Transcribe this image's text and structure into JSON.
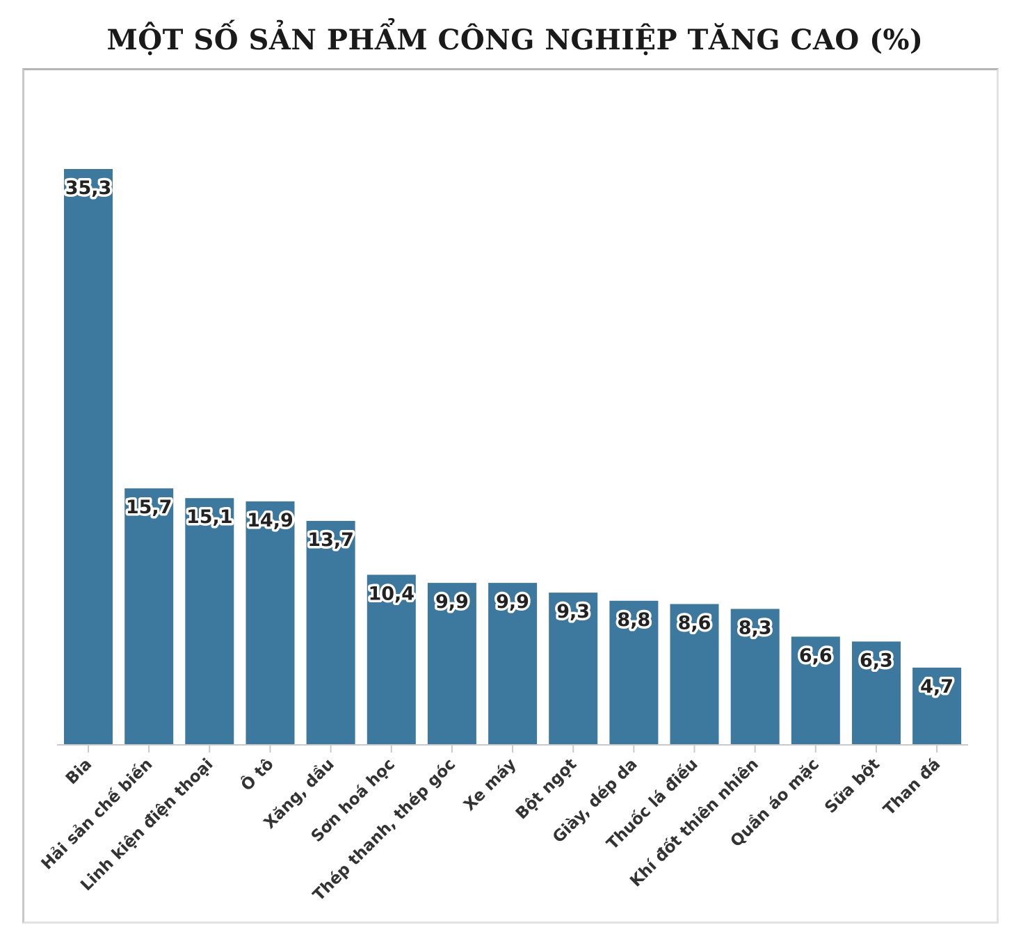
{
  "chart_data": {
    "type": "bar",
    "title": "MỘT SỐ SẢN PHẨM CÔNG NGHIỆP TĂNG CAO (%)",
    "categories": [
      "Bia",
      "Hải sản chế biến",
      "Linh kiện điện thoại",
      "Ô tô",
      "Xăng, dầu",
      "Sơn hoá học",
      "Thép thanh, thép góc",
      "Xe máy",
      "Bột ngọt",
      "Giày, dép da",
      "Thuốc lá điếu",
      "Khí đốt thiên nhiên",
      "Quần áo mặc",
      "Sữa bột",
      "Than đá"
    ],
    "values": [
      35.3,
      15.7,
      15.1,
      14.9,
      13.7,
      10.4,
      9.9,
      9.9,
      9.3,
      8.8,
      8.6,
      8.3,
      6.6,
      6.3,
      4.7
    ],
    "labels": [
      "35,3",
      "15,7",
      "15,1",
      "14,9",
      "13,7",
      "10,4",
      "9,9",
      "9,9",
      "9,3",
      "8,8",
      "8,6",
      "8,3",
      "6,6",
      "6,3",
      "4,7"
    ],
    "ylim": [
      0,
      35.3
    ],
    "grid": false,
    "colors": {
      "bar": "#3d789f"
    }
  }
}
